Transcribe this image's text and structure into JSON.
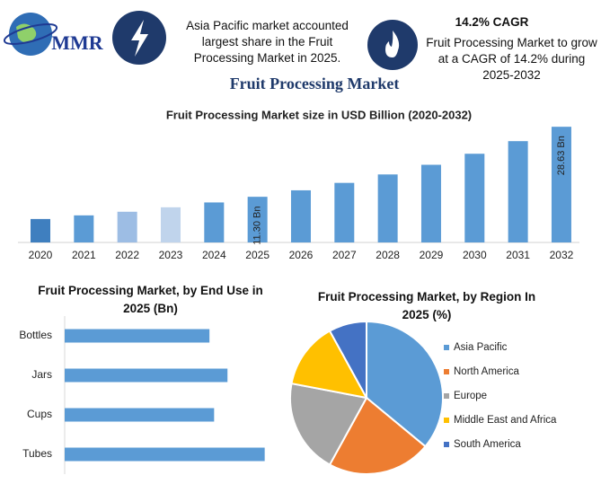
{
  "header": {
    "logo": "MMR",
    "highlight_1": "Asia Pacific market accounted largest share in the Fruit Processing Market in 2025.",
    "cagr": "14.2% CAGR",
    "highlight_2": "Fruit Processing Market to grow at a CAGR of 14.2% during 2025-2032",
    "title": "Fruit Processing Market"
  },
  "chart_data": [
    {
      "type": "bar",
      "title": "Fruit Processing Market size in USD Billion (2020-2032)",
      "categories": [
        "2020",
        "2021",
        "2022",
        "2023",
        "2024",
        "2025",
        "2026",
        "2027",
        "2028",
        "2029",
        "2030",
        "2031",
        "2032"
      ],
      "values": [
        5.8,
        6.7,
        7.6,
        8.7,
        9.9,
        11.3,
        12.9,
        14.74,
        16.83,
        19.22,
        21.95,
        25.07,
        28.63
      ],
      "value_labels": [
        null,
        null,
        null,
        null,
        null,
        "11.30 Bn",
        null,
        null,
        null,
        null,
        null,
        null,
        "28.63 Bn"
      ],
      "colors": [
        "#3f7fbf",
        "#5b9bd5",
        "#9dbde4",
        "#c0d4ec",
        "#5b9bd5",
        "#5b9bd5",
        "#5b9bd5",
        "#5b9bd5",
        "#5b9bd5",
        "#5b9bd5",
        "#5b9bd5",
        "#5b9bd5",
        "#5b9bd5"
      ],
      "ylim": [
        0,
        30
      ]
    },
    {
      "type": "hbar",
      "title": "Fruit Processing Market, by End Use in 2025 (Bn)",
      "categories": [
        "Bottles",
        "Jars",
        "Cups",
        "Tubes"
      ],
      "values": [
        2.49,
        2.8,
        2.57,
        3.44
      ],
      "color": "#5b9bd5",
      "xlim": [
        0,
        3.6
      ]
    },
    {
      "type": "pie",
      "title": "Fruit Processing Market, by Region In 2025 (%)",
      "categories": [
        "Asia Pacific",
        "North America",
        "Europe",
        "Middle East and Africa",
        "South America"
      ],
      "values": [
        36,
        22,
        20,
        14,
        8
      ],
      "colors": [
        "#5b9bd5",
        "#ed7d31",
        "#a5a5a5",
        "#ffc000",
        "#4472c4"
      ],
      "legend": "right"
    }
  ]
}
